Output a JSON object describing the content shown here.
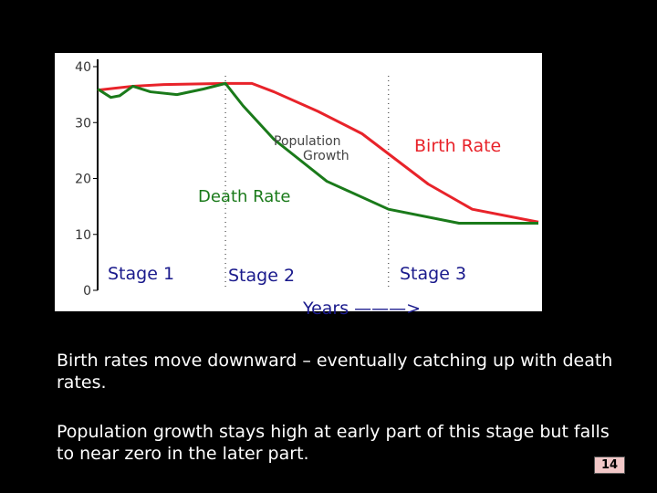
{
  "slide": {
    "paragraph_1": "Birth rates move downward – eventually catching up with death rates.",
    "paragraph_2": "Population growth stays high at early part of this stage but falls to near zero in the later part.",
    "page_number": "14"
  },
  "chart_data": {
    "type": "line",
    "title": "",
    "xlabel": "Years ———>",
    "ylabel": "",
    "ylim": [
      0,
      40
    ],
    "yticks": [
      0,
      10,
      20,
      30,
      40
    ],
    "grid": false,
    "legend": "none",
    "series": [
      {
        "name": "Birth Rate",
        "color": "#e8232a",
        "x": [
          0,
          8,
          15,
          29,
          35,
          40,
          50,
          60,
          75,
          85,
          100
        ],
        "y": [
          35.8,
          36.5,
          36.8,
          37.0,
          37.0,
          35.5,
          32.0,
          28.0,
          19.0,
          14.5,
          12.2
        ]
      },
      {
        "name": "Death Rate",
        "color": "#1a7a1a",
        "x": [
          0,
          3,
          5,
          8,
          12,
          18,
          24,
          29,
          33,
          40,
          52,
          66,
          82,
          100
        ],
        "y": [
          36.0,
          34.5,
          34.8,
          36.5,
          35.5,
          35.0,
          36.0,
          37.0,
          33.0,
          27.0,
          19.5,
          14.5,
          12.0,
          12.0
        ]
      }
    ],
    "annotations": [
      "Birth Rate",
      "Death Rate",
      "Population Growth"
    ],
    "stages": [
      "Stage 1",
      "Stage 2",
      "Stage 3"
    ],
    "stage_boundaries": [
      29,
      66
    ]
  }
}
